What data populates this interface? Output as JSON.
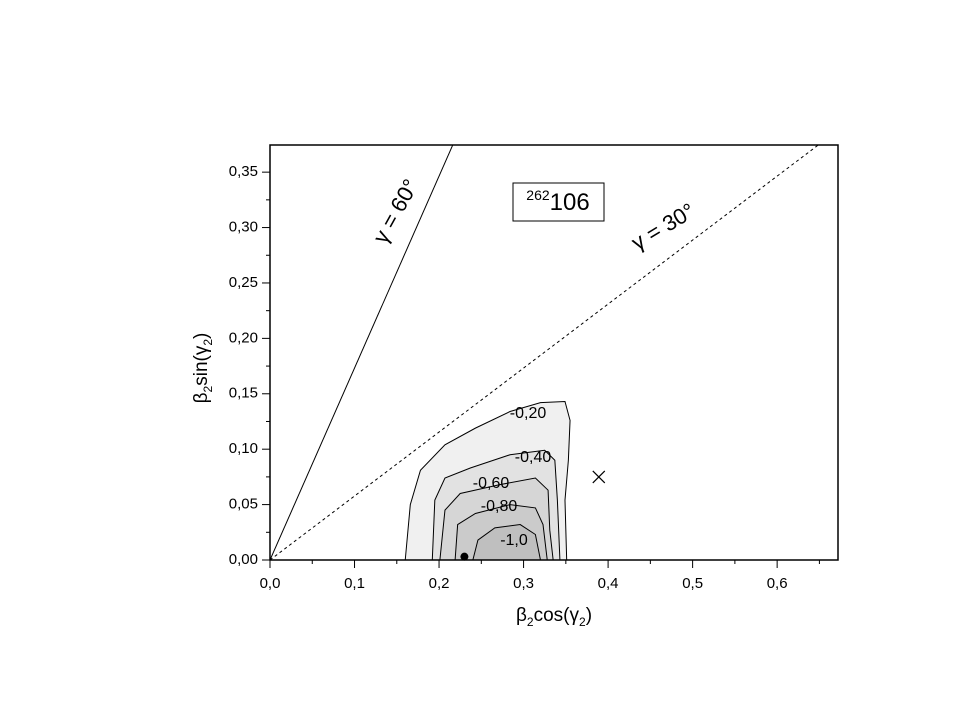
{
  "chart_data": {
    "type": "contour",
    "xlabel": [
      {
        "text": "β"
      },
      {
        "text": "2",
        "sub": true
      },
      {
        "text": "cos("
      },
      {
        "text": "γ"
      },
      {
        "text": "2",
        "sub": true
      },
      {
        "text": ")"
      }
    ],
    "ylabel": [
      {
        "text": "β"
      },
      {
        "text": "2",
        "sub": true
      },
      {
        "text": "sin("
      },
      {
        "text": "γ"
      },
      {
        "text": "2",
        "sub": true
      },
      {
        "text": ")"
      }
    ],
    "xlim": [
      0,
      0.672
    ],
    "ylim": [
      0,
      0.3745
    ],
    "xticks": [
      {
        "value": 0,
        "label": "0,0"
      },
      {
        "value": 0.1,
        "label": "0,1"
      },
      {
        "value": 0.2,
        "label": "0,2"
      },
      {
        "value": 0.3,
        "label": "0,3"
      },
      {
        "value": 0.4,
        "label": "0,4"
      },
      {
        "value": 0.5,
        "label": "0,5"
      },
      {
        "value": 0.6,
        "label": "0,6"
      }
    ],
    "yticks": [
      {
        "value": 0,
        "label": "0,00"
      },
      {
        "value": 0.05,
        "label": "0,05"
      },
      {
        "value": 0.1,
        "label": "0,10"
      },
      {
        "value": 0.15,
        "label": "0,15"
      },
      {
        "value": 0.2,
        "label": "0,20"
      },
      {
        "value": 0.25,
        "label": "0,25"
      },
      {
        "value": 0.3,
        "label": "0,30"
      },
      {
        "value": 0.35,
        "label": "0,35"
      }
    ],
    "contours": [
      {
        "label": "-0,20",
        "color": "#f0f0f0",
        "x": [
          0.16,
          0.166,
          0.178,
          0.207,
          0.243,
          0.284,
          0.32,
          0.349,
          0.355,
          0.353,
          0.349,
          0.351
        ],
        "y": [
          0,
          0.05,
          0.081,
          0.104,
          0.119,
          0.134,
          0.142,
          0.143,
          0.126,
          0.09,
          0.054,
          0
        ]
      },
      {
        "label": "-0,40",
        "color": "#e2e2e2",
        "x": [
          0.192,
          0.195,
          0.207,
          0.237,
          0.284,
          0.325,
          0.337,
          0.34,
          0.343
        ],
        "y": [
          0,
          0.054,
          0.074,
          0.083,
          0.095,
          0.099,
          0.09,
          0.054,
          0
        ]
      },
      {
        "label": "-0,60",
        "color": "#d6d6d6",
        "x": [
          0.201,
          0.207,
          0.225,
          0.272,
          0.314,
          0.329,
          0.331,
          0.335
        ],
        "y": [
          0,
          0.045,
          0.06,
          0.068,
          0.074,
          0.063,
          0.027,
          0
        ]
      },
      {
        "label": "-0,80",
        "color": "#cbcbcb",
        "x": [
          0.219,
          0.222,
          0.243,
          0.284,
          0.314,
          0.323,
          0.328
        ],
        "y": [
          0,
          0.032,
          0.042,
          0.05,
          0.047,
          0.032,
          0
        ]
      },
      {
        "label": "-1,0",
        "color": "#bfbfbf",
        "x": [
          0.24,
          0.246,
          0.266,
          0.296,
          0.314,
          0.32
        ],
        "y": [
          0,
          0.018,
          0.029,
          0.032,
          0.023,
          0
        ]
      }
    ],
    "lines": [
      {
        "label": "γ = 60°",
        "style": "solid",
        "x": [
          0,
          0.2165
        ],
        "y": [
          0,
          0.375
        ]
      },
      {
        "label": "γ = 30°",
        "style": "dashed",
        "x": [
          0,
          0.6495
        ],
        "y": [
          0,
          0.375
        ]
      }
    ],
    "markers": [
      {
        "symbol": "cross",
        "x": 0.389,
        "y": 0.075
      },
      {
        "symbol": "dot",
        "x": 0.23,
        "y": 0.003
      }
    ],
    "annotation": {
      "mass": "262",
      "element": "106"
    }
  }
}
